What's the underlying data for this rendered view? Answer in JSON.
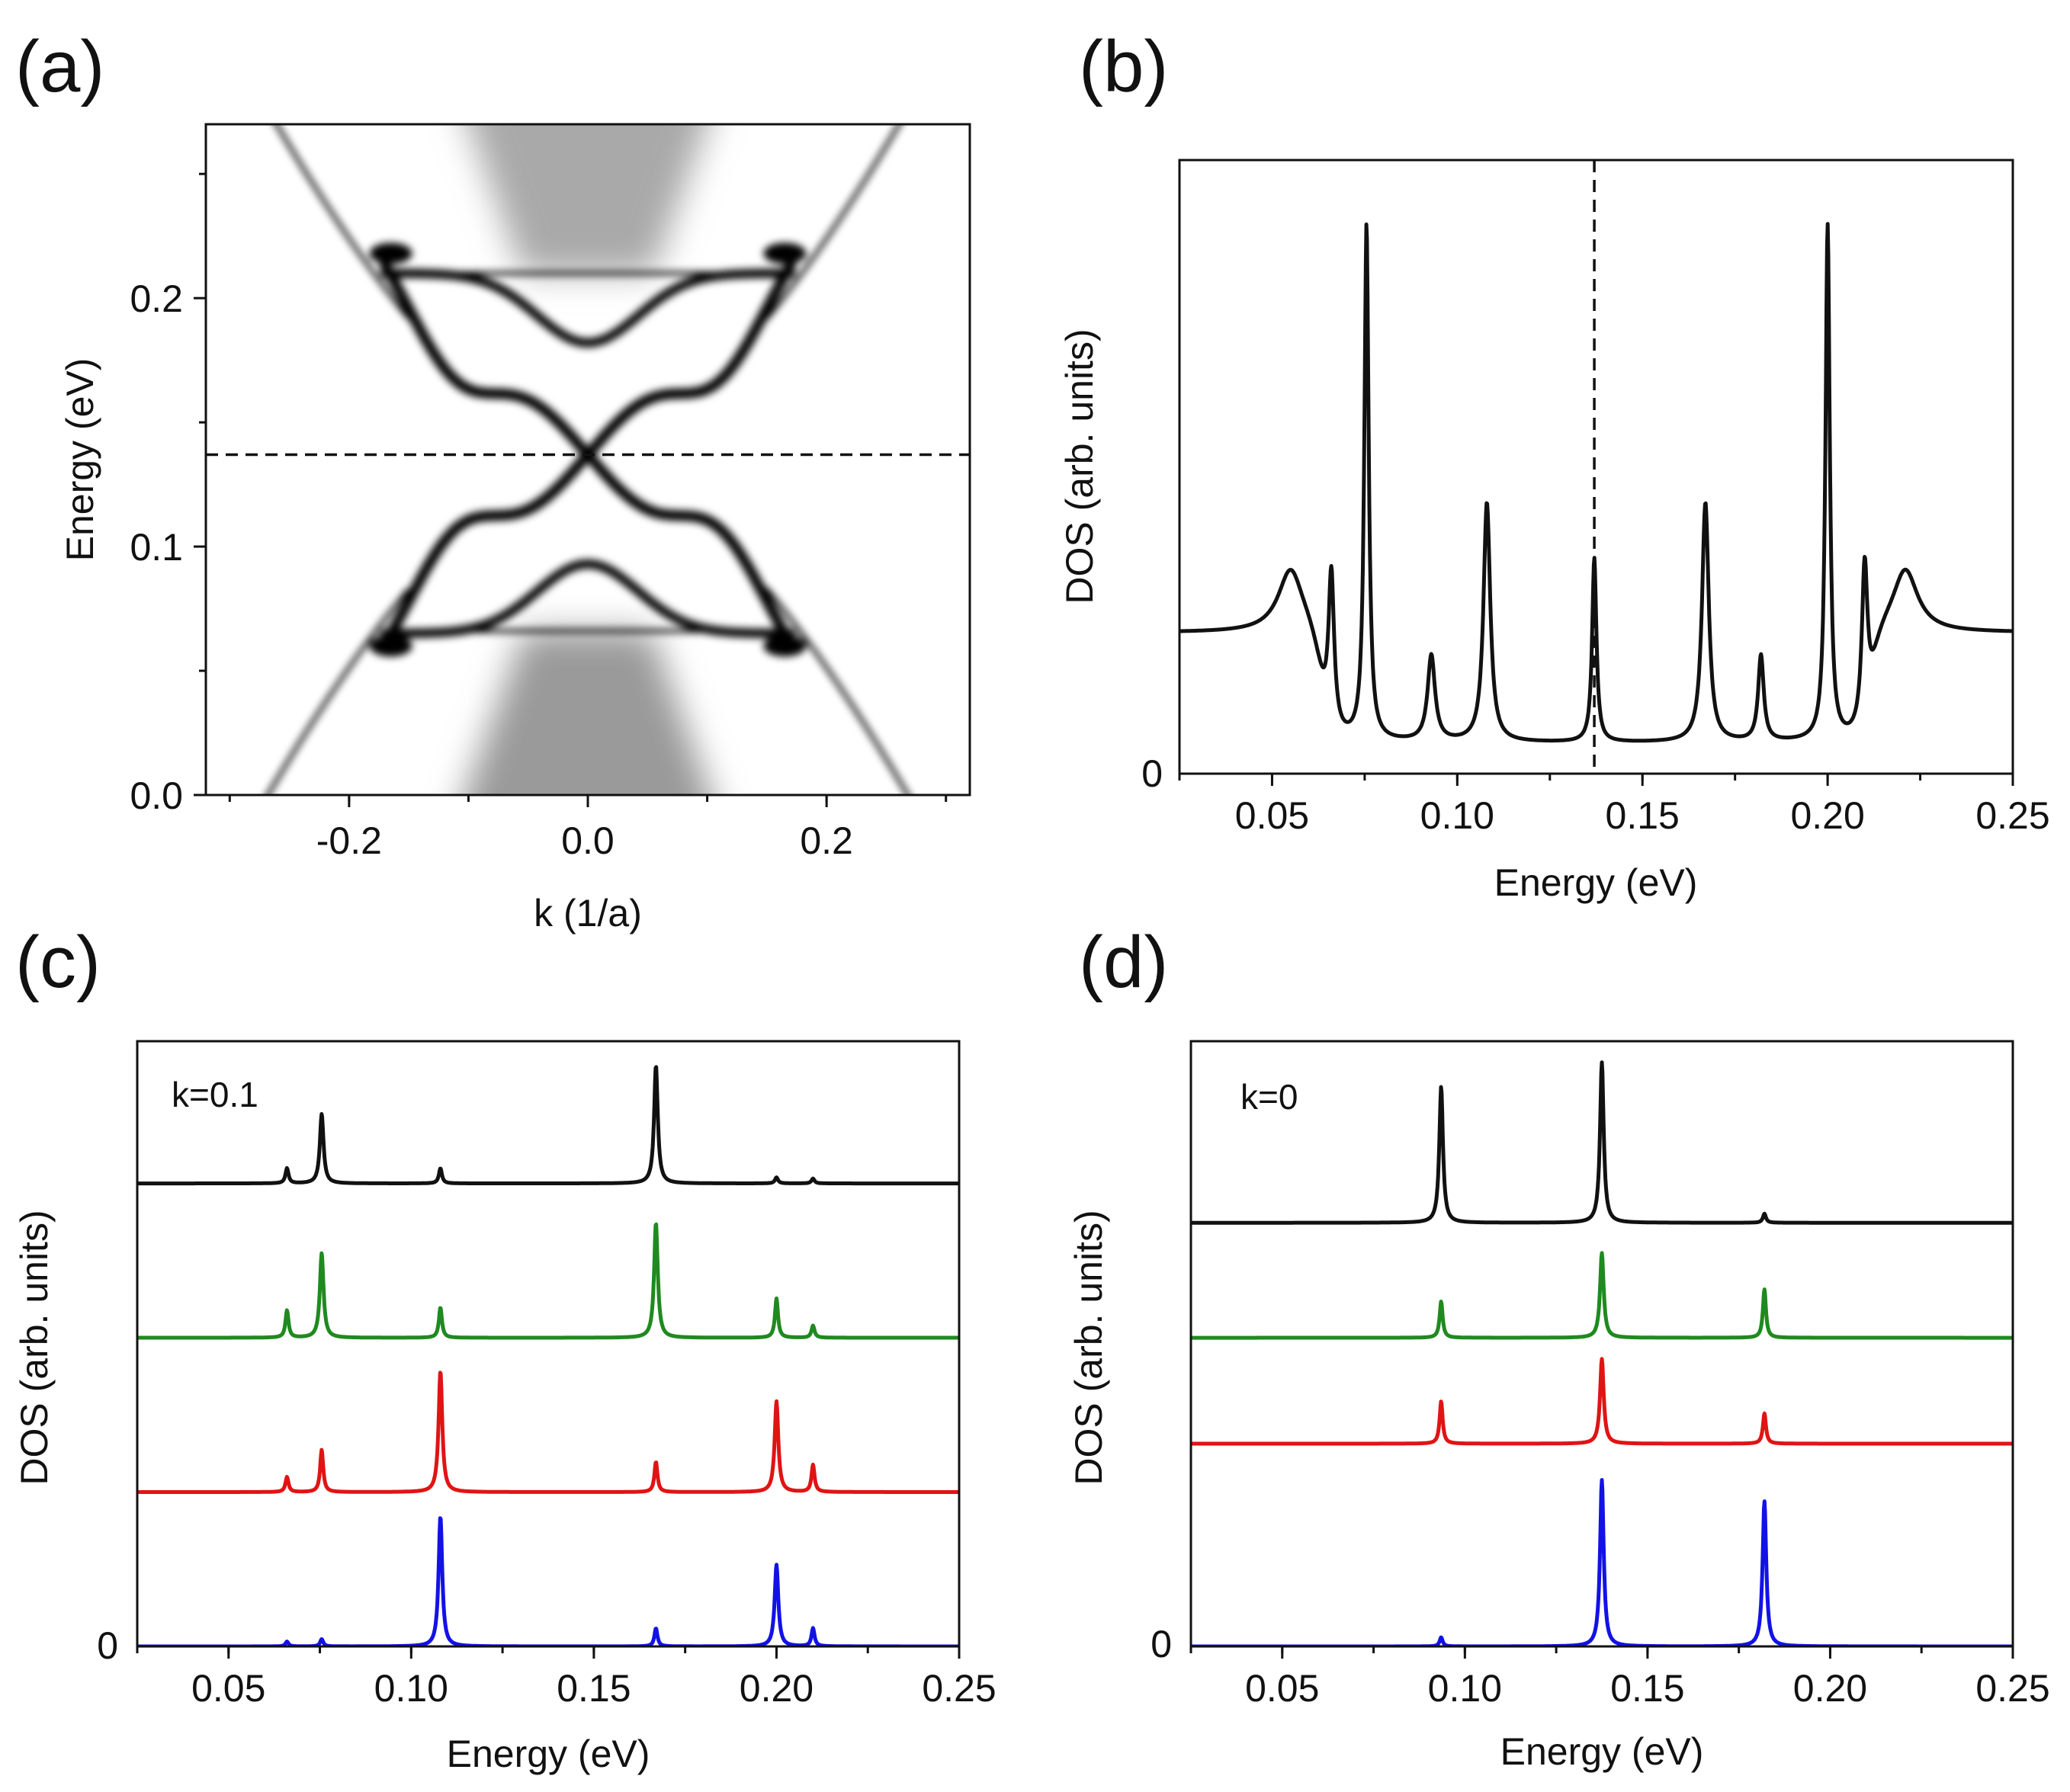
{
  "panels": {
    "a": {
      "label": "(a)"
    },
    "b": {
      "label": "(b)"
    },
    "c": {
      "label": "(c)"
    },
    "d": {
      "label": "(d)"
    }
  },
  "colors": {
    "black": "#111111",
    "green": "#1f8a1f",
    "red": "#e01414",
    "blue": "#1212e6"
  },
  "chart_data": [
    {
      "id": "a",
      "type": "heatmap",
      "description_of_axes": "band structure spectral function",
      "xlabel": "k (1/a)",
      "ylabel": "Energy (eV)",
      "xlim": [
        -0.32,
        0.32
      ],
      "ylim": [
        0.0,
        0.27
      ],
      "xticks": [
        -0.2,
        0.0,
        0.2
      ],
      "xtick_labels": [
        "-0.2",
        "0.0",
        "0.2"
      ],
      "yticks": [
        0.0,
        0.1,
        0.2
      ],
      "ytick_labels": [
        "0.0",
        "0.1",
        "0.2"
      ],
      "dashed_hline_energy": 0.137,
      "bands": {
        "outer_v_edge": {
          "k0": 0.27,
          "slope": 1.9
        },
        "conduction_edge": 0.21,
        "valence_edge": 0.066,
        "dirac_point": 0.137,
        "upper_bump_min": 0.182,
        "lower_bump_max": 0.093
      }
    },
    {
      "id": "b",
      "type": "line",
      "xlabel": "Energy (eV)",
      "ylabel": "DOS (arb. units)",
      "xlim": [
        0.025,
        0.25
      ],
      "ylim": [
        0,
        1
      ],
      "xticks": [
        0.05,
        0.1,
        0.15,
        0.2,
        0.25
      ],
      "xtick_labels": [
        "0.05",
        "0.10",
        "0.15",
        "0.20",
        "0.25"
      ],
      "ytick_labels": [
        "0"
      ],
      "dashed_vline_energy": 0.137,
      "series": [
        {
          "name": "DOS",
          "color": "black",
          "baseline": 0.05,
          "background": {
            "low_level": 0.23,
            "low_end": 0.063,
            "high_start": 0.212,
            "high_level": 0.23
          },
          "peaks": [
            {
              "x": 0.055,
              "a": 0.1,
              "w": 0.004
            },
            {
              "x": 0.066,
              "a": 0.25,
              "w": 0.0009
            },
            {
              "x": 0.0755,
              "a": 0.84,
              "w": 0.0007
            },
            {
              "x": 0.093,
              "a": 0.14,
              "w": 0.0012
            },
            {
              "x": 0.108,
              "a": 0.39,
              "w": 0.0011
            },
            {
              "x": 0.137,
              "a": 0.3,
              "w": 0.0007
            },
            {
              "x": 0.167,
              "a": 0.39,
              "w": 0.0011
            },
            {
              "x": 0.182,
              "a": 0.14,
              "w": 0.0009
            },
            {
              "x": 0.2,
              "a": 0.84,
              "w": 0.0007
            },
            {
              "x": 0.21,
              "a": 0.25,
              "w": 0.0009
            },
            {
              "x": 0.221,
              "a": 0.1,
              "w": 0.004
            }
          ]
        }
      ]
    },
    {
      "id": "c",
      "type": "line",
      "annotation": "k=0.1",
      "xlabel": "Energy (eV)",
      "ylabel": "DOS (arb. units)",
      "xlim": [
        0.025,
        0.25
      ],
      "ylim": [
        0,
        1
      ],
      "xticks": [
        0.05,
        0.1,
        0.15,
        0.2,
        0.25
      ],
      "xtick_labels": [
        "0.05",
        "0.10",
        "0.15",
        "0.20",
        "0.25"
      ],
      "ytick_labels": [
        "0"
      ],
      "series": [
        {
          "name": "black",
          "color": "black",
          "offset": 0.765,
          "peaks": [
            {
              "x": 0.066,
              "a": 0.025,
              "w": 0.0005
            },
            {
              "x": 0.0755,
              "a": 0.115,
              "w": 0.0006
            },
            {
              "x": 0.108,
              "a": 0.025,
              "w": 0.0005
            },
            {
              "x": 0.167,
              "a": 0.195,
              "w": 0.0006
            },
            {
              "x": 0.2,
              "a": 0.01,
              "w": 0.0005
            },
            {
              "x": 0.21,
              "a": 0.008,
              "w": 0.0005
            }
          ]
        },
        {
          "name": "green",
          "color": "green",
          "offset": 0.51,
          "peaks": [
            {
              "x": 0.066,
              "a": 0.045,
              "w": 0.0005
            },
            {
              "x": 0.0755,
              "a": 0.14,
              "w": 0.0006
            },
            {
              "x": 0.108,
              "a": 0.05,
              "w": 0.0005
            },
            {
              "x": 0.167,
              "a": 0.19,
              "w": 0.0006
            },
            {
              "x": 0.2,
              "a": 0.065,
              "w": 0.0005
            },
            {
              "x": 0.21,
              "a": 0.02,
              "w": 0.0005
            }
          ]
        },
        {
          "name": "red",
          "color": "red",
          "offset": 0.255,
          "peaks": [
            {
              "x": 0.066,
              "a": 0.025,
              "w": 0.0005
            },
            {
              "x": 0.0755,
              "a": 0.07,
              "w": 0.0005
            },
            {
              "x": 0.108,
              "a": 0.2,
              "w": 0.0006
            },
            {
              "x": 0.167,
              "a": 0.05,
              "w": 0.0005
            },
            {
              "x": 0.2,
              "a": 0.15,
              "w": 0.0006
            },
            {
              "x": 0.21,
              "a": 0.045,
              "w": 0.0005
            }
          ]
        },
        {
          "name": "blue",
          "color": "blue",
          "offset": 0.0,
          "peaks": [
            {
              "x": 0.066,
              "a": 0.008,
              "w": 0.0005
            },
            {
              "x": 0.0755,
              "a": 0.012,
              "w": 0.0005
            },
            {
              "x": 0.108,
              "a": 0.215,
              "w": 0.0006
            },
            {
              "x": 0.167,
              "a": 0.03,
              "w": 0.0005
            },
            {
              "x": 0.2,
              "a": 0.135,
              "w": 0.0006
            },
            {
              "x": 0.21,
              "a": 0.03,
              "w": 0.0005
            }
          ]
        }
      ]
    },
    {
      "id": "d",
      "type": "line",
      "annotation": "k=0",
      "xlabel": "Energy (eV)",
      "ylabel": "DOS (arb. units)",
      "xlim": [
        0.025,
        0.25
      ],
      "ylim": [
        0,
        1
      ],
      "xticks": [
        0.05,
        0.1,
        0.15,
        0.2,
        0.25
      ],
      "xtick_labels": [
        "0.05",
        "0.10",
        "0.15",
        "0.20",
        "0.25"
      ],
      "ytick_labels": [
        "0"
      ],
      "series": [
        {
          "name": "black",
          "color": "black",
          "offset": 0.7,
          "peaks": [
            {
              "x": 0.0935,
              "a": 0.225,
              "w": 0.0006
            },
            {
              "x": 0.1375,
              "a": 0.265,
              "w": 0.0006
            },
            {
              "x": 0.182,
              "a": 0.015,
              "w": 0.0005
            }
          ]
        },
        {
          "name": "green",
          "color": "green",
          "offset": 0.51,
          "peaks": [
            {
              "x": 0.0935,
              "a": 0.06,
              "w": 0.0005
            },
            {
              "x": 0.1375,
              "a": 0.14,
              "w": 0.0006
            },
            {
              "x": 0.182,
              "a": 0.08,
              "w": 0.0005
            }
          ]
        },
        {
          "name": "red",
          "color": "red",
          "offset": 0.335,
          "peaks": [
            {
              "x": 0.0935,
              "a": 0.07,
              "w": 0.0005
            },
            {
              "x": 0.1375,
              "a": 0.14,
              "w": 0.0006
            },
            {
              "x": 0.182,
              "a": 0.05,
              "w": 0.0005
            }
          ]
        },
        {
          "name": "blue",
          "color": "blue",
          "offset": 0.0,
          "peaks": [
            {
              "x": 0.0935,
              "a": 0.015,
              "w": 0.0005
            },
            {
              "x": 0.1375,
              "a": 0.275,
              "w": 0.0006
            },
            {
              "x": 0.182,
              "a": 0.24,
              "w": 0.0006
            }
          ]
        }
      ]
    }
  ]
}
